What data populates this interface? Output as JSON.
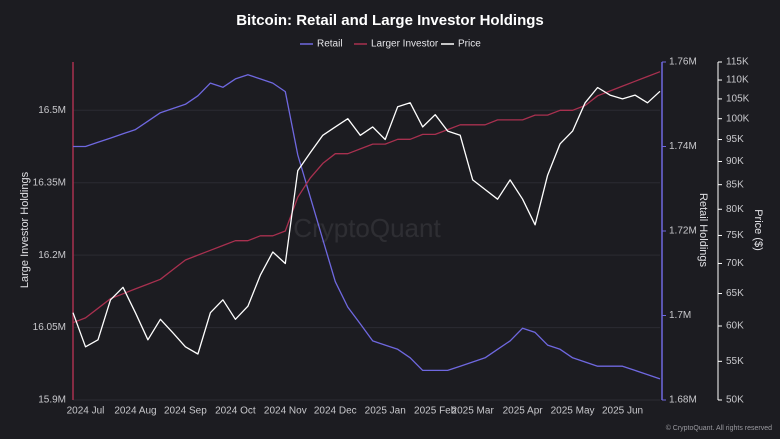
{
  "chart_data": {
    "type": "line",
    "title": "Bitcoin: Retail and Large Investor Holdings",
    "watermark": "CryptoQuant",
    "footer": "© CryptoQuant. All rights reserved",
    "y_label": "Large Investor Holdings",
    "y2_label": "Retail Holdings",
    "y3_label": "Price ($)",
    "categories": [
      null,
      "2024 Jul",
      null,
      null,
      null,
      "2024 Aug",
      null,
      null,
      null,
      "2024 Sep",
      null,
      null,
      null,
      "2024 Oct",
      null,
      null,
      null,
      "2024 Nov",
      null,
      null,
      null,
      "2024 Dec",
      null,
      null,
      null,
      "2025 Jan",
      null,
      null,
      null,
      "2025 Feb",
      null,
      null,
      "2025 Mar",
      null,
      null,
      null,
      "2025 Apr",
      null,
      null,
      null,
      "2025 May",
      null,
      null,
      null,
      "2025 Jun",
      null,
      null,
      null
    ],
    "series": [
      {
        "name": "Retail",
        "color": "#6f68e0",
        "axis": "y2",
        "values": [
          1740000,
          1740000,
          1741000,
          1742000,
          1743000,
          1744000,
          1746000,
          1748000,
          1749000,
          1750000,
          1752000,
          1755000,
          1754000,
          1756000,
          1757000,
          1756000,
          1755000,
          1753000,
          1738000,
          1728000,
          1718000,
          1708000,
          1702000,
          1698000,
          1694000,
          1693000,
          1692000,
          1690000,
          1687000,
          1687000,
          1687000,
          1688000,
          1689000,
          1690000,
          1692000,
          1694000,
          1697000,
          1696000,
          1693000,
          1692000,
          1690000,
          1689000,
          1688000,
          1688000,
          1688000,
          1687000,
          1686000,
          1685000
        ]
      },
      {
        "name": "Larger Investor",
        "color": "#a8304f",
        "axis": "y",
        "values": [
          16060000,
          16070000,
          16090000,
          16110000,
          16120000,
          16130000,
          16140000,
          16150000,
          16170000,
          16190000,
          16200000,
          16210000,
          16220000,
          16230000,
          16230000,
          16240000,
          16240000,
          16250000,
          16320000,
          16360000,
          16390000,
          16410000,
          16410000,
          16420000,
          16430000,
          16430000,
          16440000,
          16440000,
          16450000,
          16450000,
          16460000,
          16470000,
          16470000,
          16470000,
          16480000,
          16480000,
          16480000,
          16490000,
          16490000,
          16500000,
          16500000,
          16510000,
          16530000,
          16540000,
          16550000,
          16560000,
          16570000,
          16580000
        ]
      },
      {
        "name": "Price",
        "color": "#ffffff",
        "axis": "y3",
        "values": [
          62000,
          57000,
          58000,
          64000,
          66000,
          62000,
          58000,
          61000,
          59000,
          57000,
          56000,
          62000,
          64000,
          61000,
          63000,
          68000,
          72000,
          70000,
          88000,
          92000,
          96000,
          98000,
          100000,
          96000,
          98000,
          95000,
          103000,
          104000,
          98000,
          101000,
          97000,
          96000,
          86000,
          84000,
          82000,
          86000,
          82000,
          77000,
          87000,
          94000,
          97000,
          104000,
          108000,
          106000,
          105000,
          106000,
          104000,
          107000
        ]
      }
    ],
    "ylim": [
      15900000,
      16600000
    ],
    "yticks": [
      {
        "value": 15900000,
        "label": "15.9M"
      },
      {
        "value": 16050000,
        "label": "16.05M"
      },
      {
        "value": 16200000,
        "label": "16.2M"
      },
      {
        "value": 16350000,
        "label": "16.35M"
      },
      {
        "value": 16500000,
        "label": "16.5M"
      }
    ],
    "y2lim": [
      1680000,
      1760000
    ],
    "y2ticks": [
      {
        "value": 1680000,
        "label": "1.68M"
      },
      {
        "value": 1700000,
        "label": "1.7M"
      },
      {
        "value": 1720000,
        "label": "1.72M"
      },
      {
        "value": 1740000,
        "label": "1.74M"
      },
      {
        "value": 1760000,
        "label": "1.76M"
      }
    ],
    "y3lim": [
      50000,
      115000
    ],
    "y3log": true,
    "y3ticks": [
      {
        "value": 50000,
        "label": "50K"
      },
      {
        "value": 55000,
        "label": "55K"
      },
      {
        "value": 60000,
        "label": "60K"
      },
      {
        "value": 65000,
        "label": "65K"
      },
      {
        "value": 70000,
        "label": "70K"
      },
      {
        "value": 75000,
        "label": "75K"
      },
      {
        "value": 80000,
        "label": "80K"
      },
      {
        "value": 85000,
        "label": "85K"
      },
      {
        "value": 90000,
        "label": "90K"
      },
      {
        "value": 95000,
        "label": "95K"
      },
      {
        "value": 100000,
        "label": "100K"
      },
      {
        "value": 105000,
        "label": "105K"
      },
      {
        "value": 110000,
        "label": "110K"
      },
      {
        "value": 115000,
        "label": "115K"
      }
    ],
    "grid": true
  }
}
